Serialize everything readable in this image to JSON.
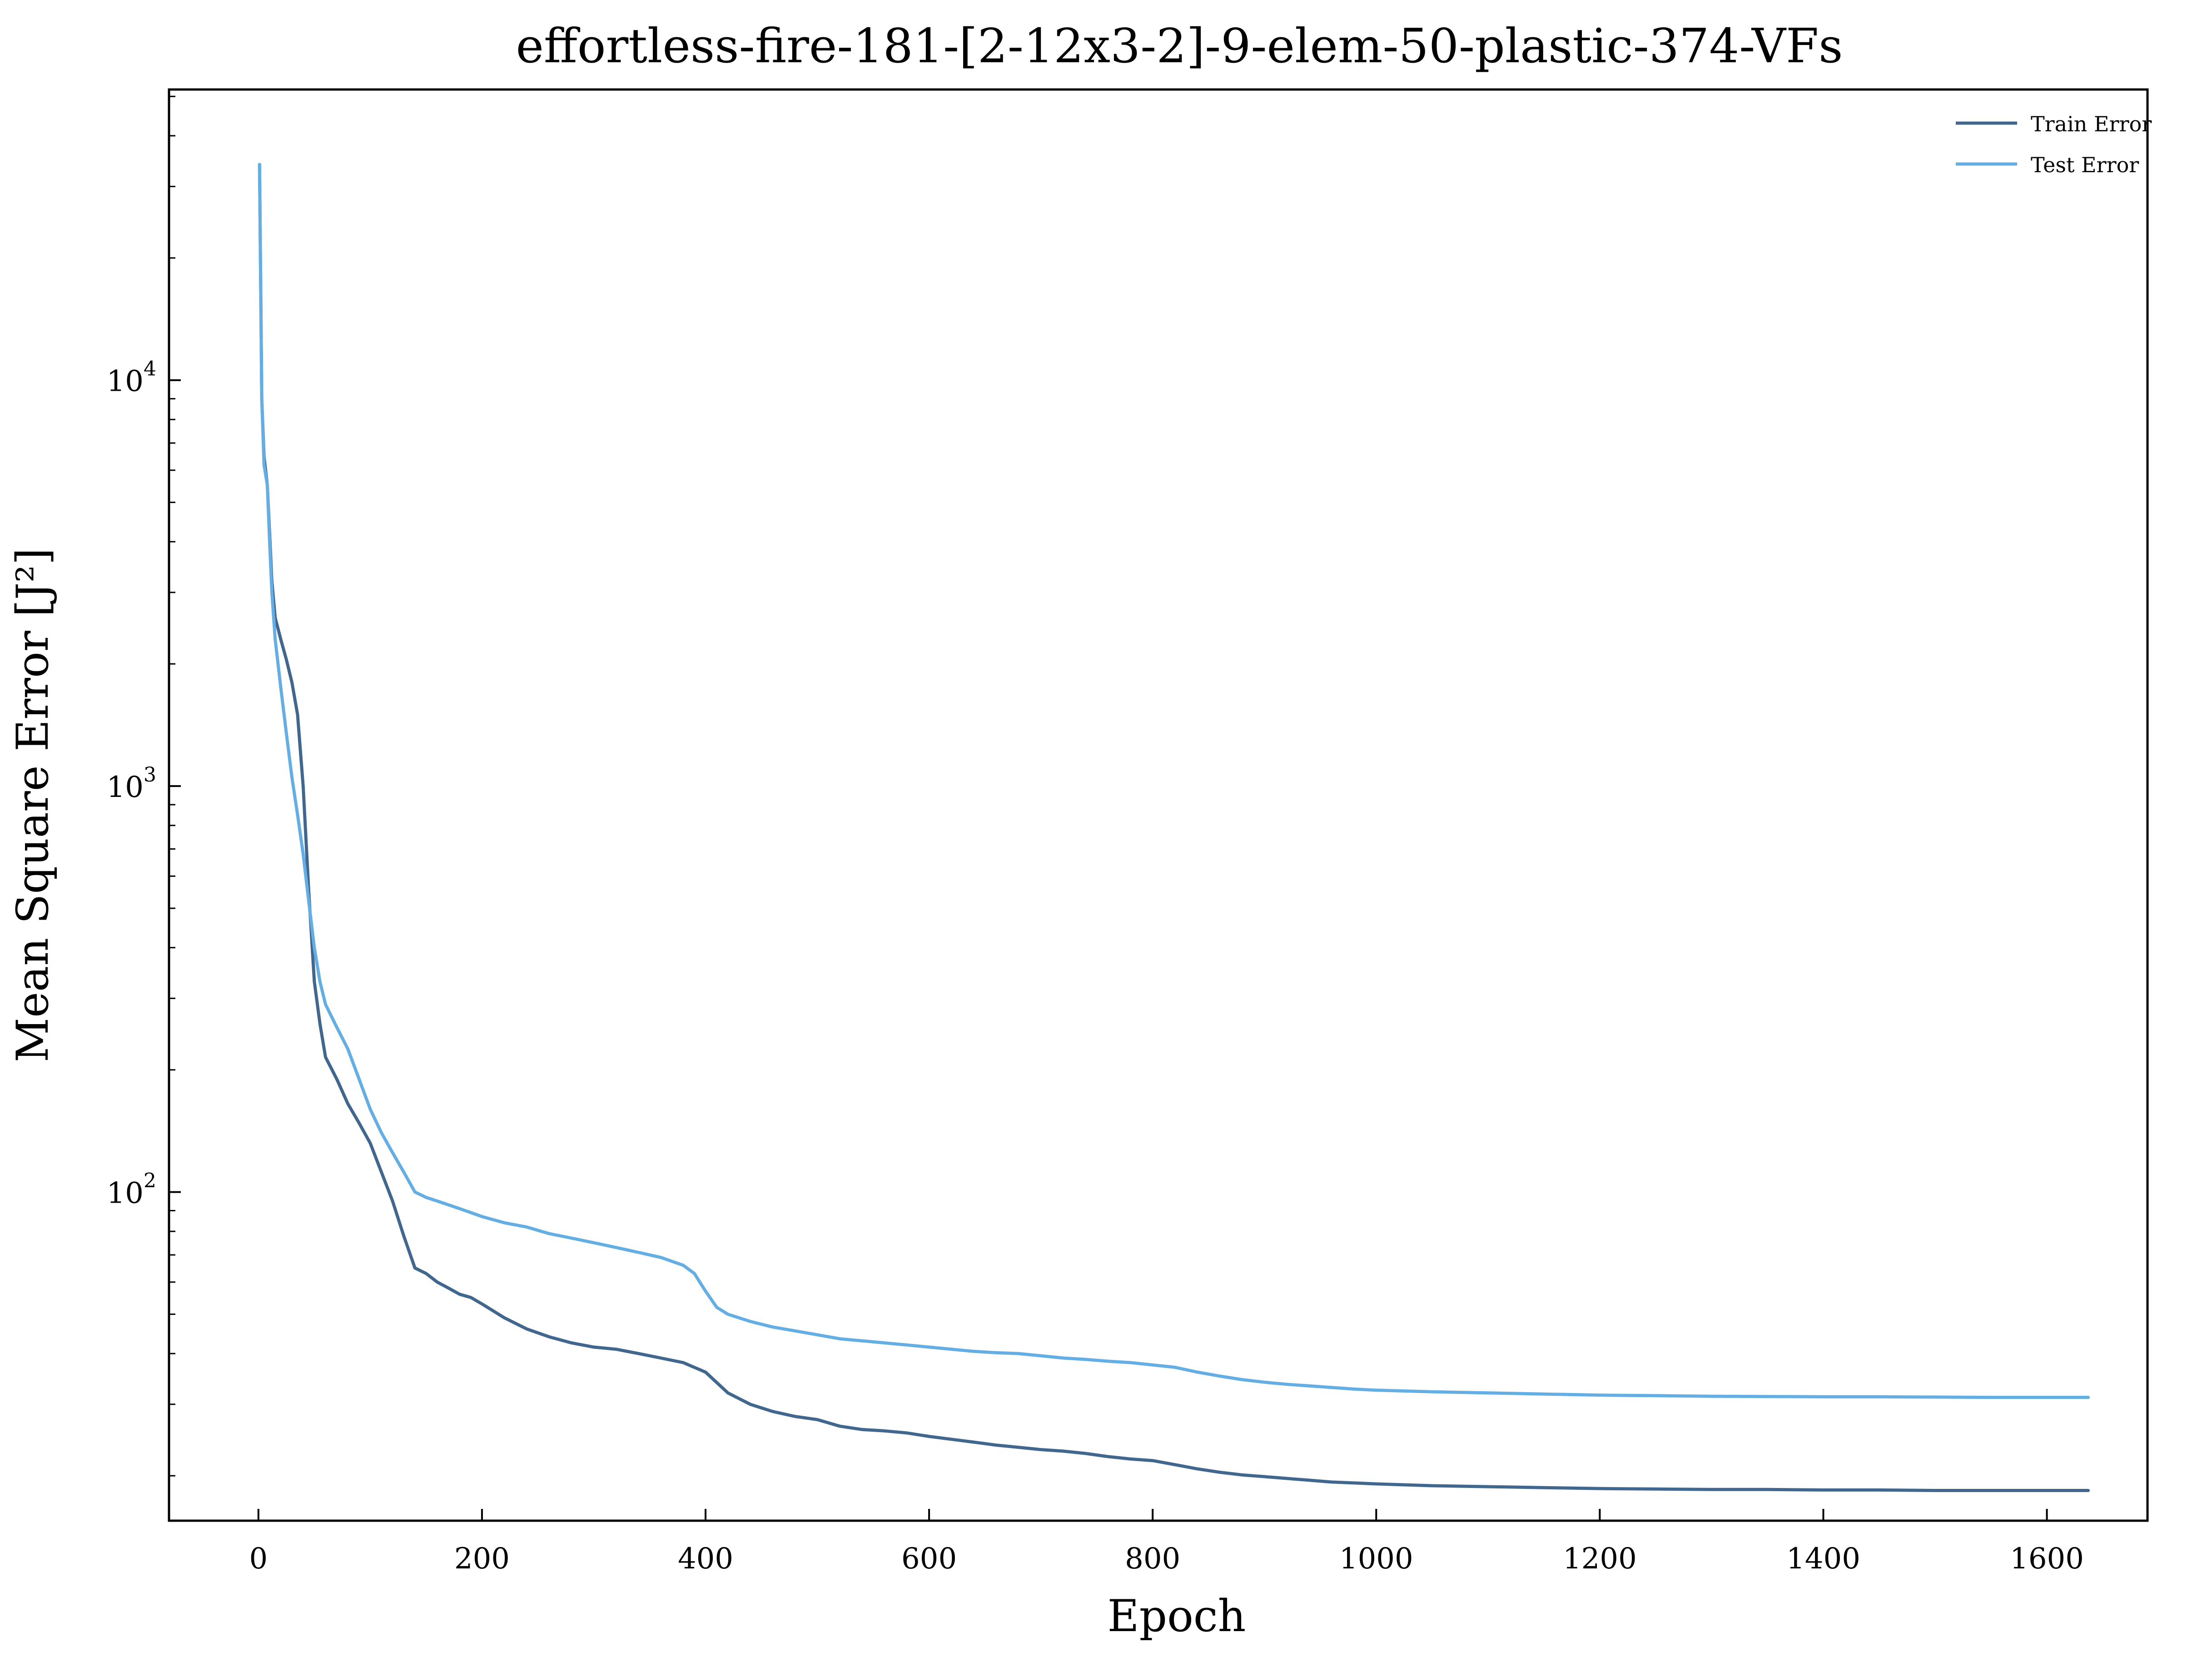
{
  "chart_data": {
    "type": "line",
    "title": "effortless-fire-181-[2-12x3-2]-9-elem-50-plastic-374-VFs",
    "xlabel": "Epoch",
    "ylabel": "Mean Square Error [J²]",
    "yscale": "log",
    "xlim": [
      -80,
      1690
    ],
    "ylim": [
      15.5,
      52000
    ],
    "x_ticks": [
      0,
      200,
      400,
      600,
      800,
      1000,
      1200,
      1400,
      1600
    ],
    "x_tick_labels": [
      "0",
      "200",
      "400",
      "600",
      "800",
      "1000",
      "1200",
      "1400",
      "1600"
    ],
    "y_ticks": [
      100,
      1000,
      10000
    ],
    "y_tick_labels": [
      {
        "base": "10",
        "exp": "2"
      },
      {
        "base": "10",
        "exp": "3"
      },
      {
        "base": "10",
        "exp": "4"
      }
    ],
    "grid": false,
    "legend_position": "top-right",
    "series": [
      {
        "name": "Train Error",
        "color": "#41678f",
        "x": [
          1,
          3,
          5,
          8,
          10,
          12,
          15,
          20,
          25,
          30,
          35,
          40,
          45,
          50,
          55,
          60,
          70,
          80,
          90,
          100,
          110,
          120,
          130,
          140,
          150,
          160,
          170,
          180,
          190,
          200,
          220,
          240,
          260,
          280,
          300,
          320,
          340,
          360,
          380,
          400,
          420,
          440,
          460,
          480,
          500,
          520,
          540,
          560,
          580,
          600,
          620,
          640,
          660,
          680,
          700,
          720,
          740,
          760,
          780,
          800,
          820,
          840,
          860,
          880,
          900,
          920,
          940,
          960,
          980,
          1000,
          1050,
          1100,
          1150,
          1200,
          1250,
          1300,
          1350,
          1400,
          1450,
          1500,
          1550,
          1600,
          1637
        ],
        "y": [
          34000,
          9000,
          6500,
          5500,
          4200,
          3200,
          2600,
          2300,
          2050,
          1800,
          1500,
          1000,
          550,
          330,
          260,
          215,
          190,
          165,
          148,
          132,
          112,
          95,
          78,
          65,
          63,
          60,
          58,
          56,
          55,
          53,
          49,
          46,
          44,
          42.5,
          41.5,
          41,
          40,
          39,
          38,
          36,
          32,
          30,
          28.8,
          28,
          27.5,
          26.5,
          26,
          25.8,
          25.5,
          25,
          24.6,
          24.2,
          23.8,
          23.5,
          23.2,
          23,
          22.7,
          22.3,
          22,
          21.8,
          21.3,
          20.8,
          20.4,
          20.1,
          19.9,
          19.7,
          19.5,
          19.3,
          19.2,
          19.1,
          18.9,
          18.8,
          18.7,
          18.6,
          18.55,
          18.5,
          18.5,
          18.45,
          18.45,
          18.4,
          18.4,
          18.4,
          18.4
        ]
      },
      {
        "name": "Test Error",
        "color": "#64aee3",
        "x": [
          1,
          3,
          5,
          8,
          10,
          12,
          15,
          20,
          25,
          30,
          35,
          40,
          45,
          50,
          55,
          60,
          70,
          80,
          90,
          100,
          110,
          120,
          130,
          140,
          150,
          160,
          170,
          180,
          190,
          200,
          220,
          240,
          260,
          280,
          300,
          320,
          340,
          360,
          380,
          390,
          400,
          410,
          420,
          440,
          460,
          480,
          500,
          520,
          540,
          560,
          580,
          600,
          620,
          640,
          660,
          680,
          700,
          720,
          740,
          760,
          780,
          800,
          820,
          840,
          860,
          880,
          900,
          920,
          940,
          960,
          980,
          1000,
          1050,
          1100,
          1150,
          1200,
          1250,
          1300,
          1350,
          1400,
          1450,
          1500,
          1550,
          1600,
          1637
        ],
        "y": [
          34000,
          9000,
          6200,
          5500,
          4000,
          3000,
          2300,
          1750,
          1350,
          1050,
          850,
          680,
          520,
          400,
          330,
          290,
          255,
          225,
          190,
          160,
          140,
          125,
          112,
          100,
          97,
          95,
          93,
          91,
          89,
          87,
          84,
          82,
          79,
          77,
          75,
          73,
          71,
          69,
          66,
          63,
          57,
          52,
          50,
          48,
          46.5,
          45.5,
          44.5,
          43.5,
          43,
          42.5,
          42,
          41.5,
          41,
          40.5,
          40.2,
          40,
          39.5,
          39,
          38.7,
          38.3,
          38,
          37.5,
          37,
          36,
          35.2,
          34.5,
          34,
          33.6,
          33.3,
          33,
          32.7,
          32.5,
          32.2,
          32,
          31.8,
          31.6,
          31.5,
          31.4,
          31.35,
          31.3,
          31.3,
          31.25,
          31.2,
          31.2,
          31.2
        ]
      }
    ]
  }
}
